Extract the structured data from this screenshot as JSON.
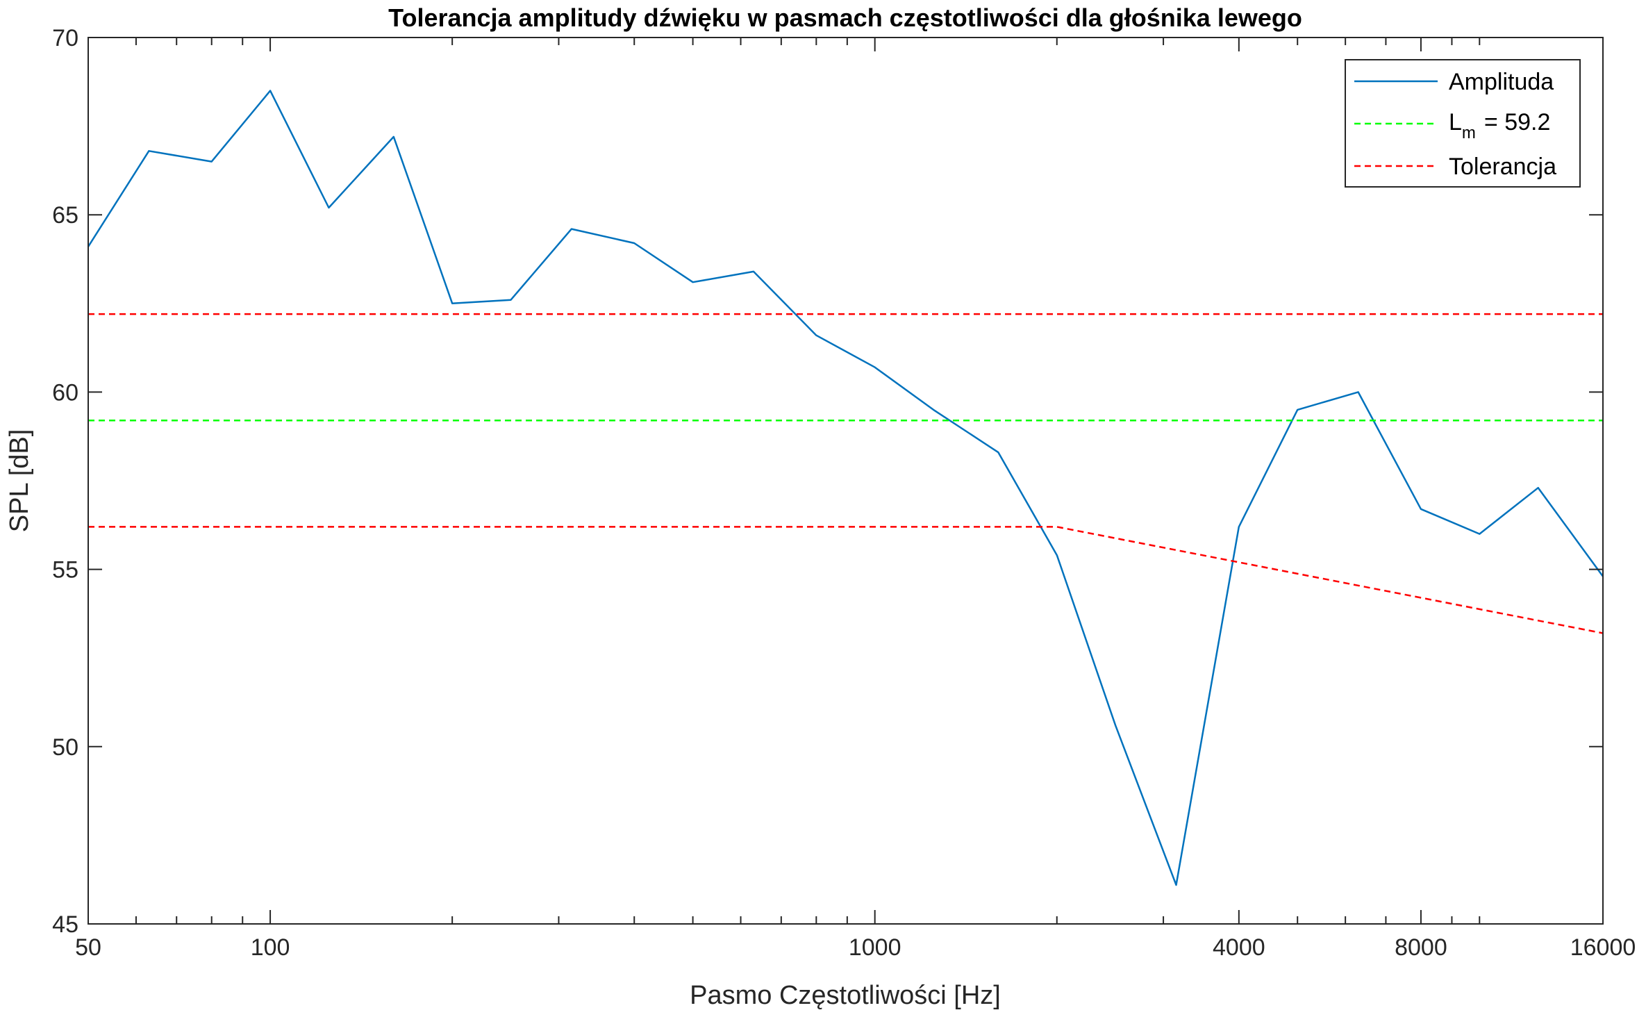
{
  "chart_data": {
    "type": "line",
    "title": "Tolerancja amplitudy dźwięku w pasmach częstotliwości dla głośnika lewego",
    "xlabel": "Pasmo Częstotliwości [Hz]",
    "ylabel": "SPL [dB]",
    "xscale": "log",
    "xlim": [
      50,
      16000
    ],
    "ylim": [
      45,
      70
    ],
    "xticks": [
      50,
      100,
      1000,
      4000,
      8000,
      16000
    ],
    "xtick_labels": [
      "50",
      "100",
      "1000",
      "4000",
      "8000",
      "16000"
    ],
    "yticks": [
      45,
      50,
      55,
      60,
      65,
      70
    ],
    "ytick_labels": [
      "45",
      "50",
      "55",
      "60",
      "65",
      "70"
    ],
    "grid": false,
    "legend_position": "top-right",
    "series": [
      {
        "name": "Amplituda",
        "color": "#0072BD",
        "style": "solid",
        "x": [
          50,
          63,
          80,
          100,
          125,
          160,
          200,
          250,
          315,
          400,
          500,
          630,
          800,
          1000,
          1250,
          1600,
          2000,
          2500,
          3150,
          4000,
          5000,
          6300,
          8000,
          10000,
          12500,
          16000
        ],
        "y": [
          64.1,
          66.8,
          66.5,
          68.5,
          65.2,
          67.2,
          62.5,
          62.6,
          64.6,
          64.2,
          63.1,
          63.4,
          61.6,
          60.7,
          59.5,
          58.3,
          55.4,
          50.6,
          46.1,
          56.2,
          59.5,
          60.0,
          56.7,
          56.0,
          57.3,
          54.8
        ]
      },
      {
        "name": "L",
        "name_subscript": "m",
        "name_suffix": "= 59.2",
        "color": "#00FF00",
        "style": "dashed",
        "x": [
          50,
          16000
        ],
        "y": [
          59.2,
          59.2
        ]
      },
      {
        "name": "Tolerancja",
        "color": "#FF0000",
        "style": "dashed",
        "x": [
          50,
          16000
        ],
        "y": [
          62.2,
          62.2
        ]
      },
      {
        "name": "Tolerancja",
        "legend": false,
        "color": "#FF0000",
        "style": "dashed",
        "x": [
          50,
          2000,
          16000
        ],
        "y": [
          56.2,
          56.2,
          53.2
        ]
      }
    ]
  }
}
